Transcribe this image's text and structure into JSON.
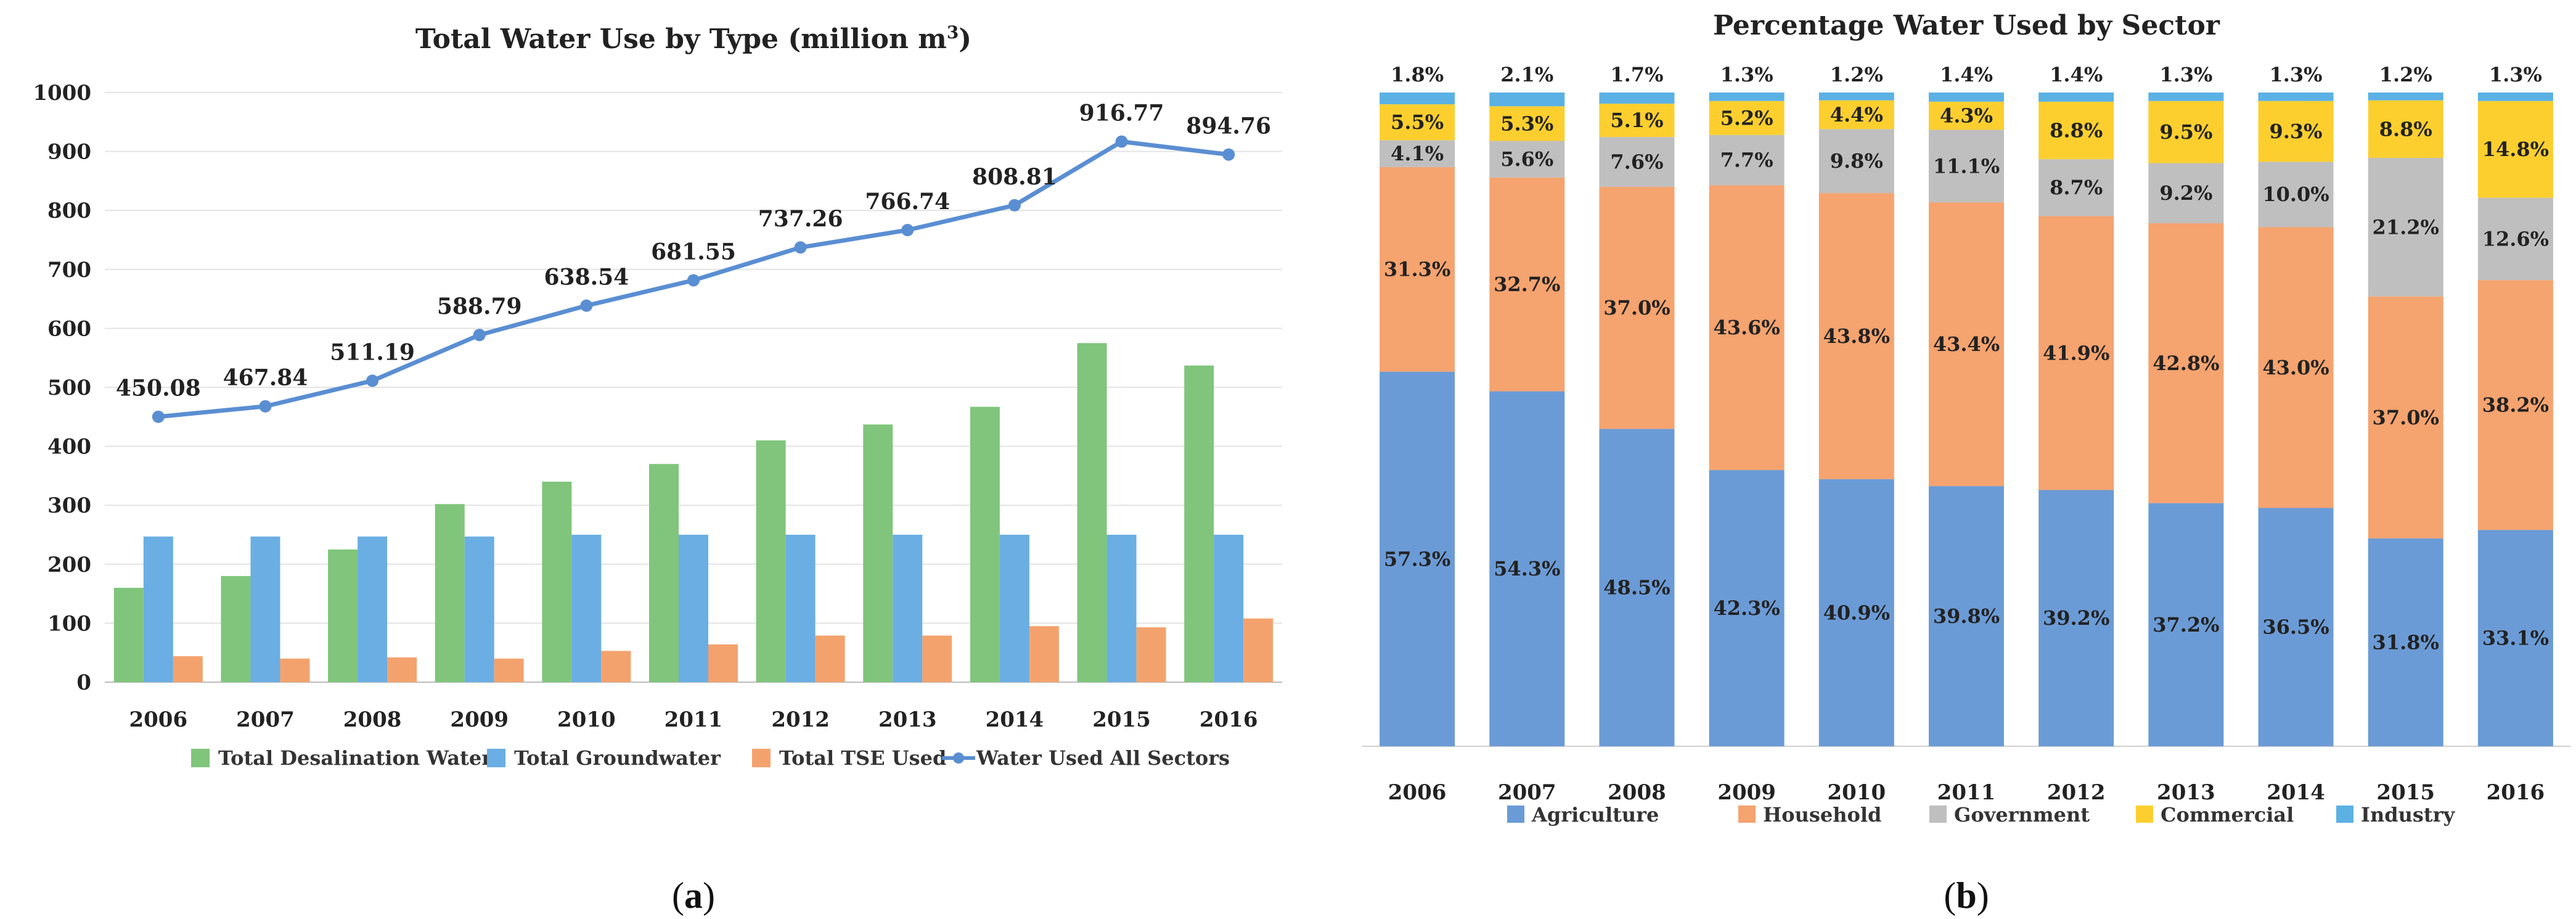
{
  "chart_data": [
    {
      "type": "bar",
      "panel_caption": "a",
      "title": "Total Water Use by Type (million  m",
      "title_superscript": "3",
      "title_suffix": ")",
      "categories": [
        "2006",
        "2007",
        "2008",
        "2009",
        "2010",
        "2011",
        "2012",
        "2013",
        "2014",
        "2015",
        "2016"
      ],
      "ylim": [
        0,
        1000
      ],
      "yticks": [
        0,
        100,
        200,
        300,
        400,
        500,
        600,
        700,
        800,
        900,
        1000
      ],
      "series": [
        {
          "name": "Total Desalination Water",
          "kind": "bar",
          "color": "#80c57b",
          "values": [
            160,
            180,
            225,
            302,
            340,
            370,
            410,
            437,
            467,
            575,
            537
          ]
        },
        {
          "name": "Total Groundwater",
          "kind": "bar",
          "color": "#6aaee3",
          "values": [
            247,
            247,
            247,
            247,
            250,
            250,
            250,
            250,
            250,
            250,
            250
          ]
        },
        {
          "name": "Total TSE Used",
          "kind": "bar",
          "color": "#f4a26d",
          "values": [
            44,
            40,
            42,
            40,
            53,
            64,
            79,
            79,
            95,
            93,
            108
          ]
        },
        {
          "name": "Water Used All Sectors",
          "kind": "line",
          "color": "#5a8ed2",
          "values": [
            450.08,
            467.84,
            511.19,
            588.79,
            638.54,
            681.55,
            737.26,
            766.74,
            808.81,
            916.77,
            894.76
          ],
          "labels": [
            "450.08",
            "467.84",
            "511.19",
            "588.79",
            "638.54",
            "681.55",
            "737.26",
            "766.74",
            "808.81",
            "916.77",
            "894.76"
          ]
        }
      ],
      "legend_position": "bottom"
    },
    {
      "type": "bar",
      "stacked": true,
      "panel_caption": "b",
      "title": "Percentage Water Used by Sector",
      "categories": [
        "2006",
        "2007",
        "2008",
        "2009",
        "2010",
        "2011",
        "2012",
        "2013",
        "2014",
        "2015",
        "2016"
      ],
      "ylim": [
        0,
        100
      ],
      "series": [
        {
          "name": "Agriculture",
          "color": "#6b9bd6",
          "values": [
            57.3,
            54.3,
            48.5,
            42.3,
            40.9,
            39.8,
            39.2,
            37.2,
            36.5,
            31.8,
            33.1
          ],
          "labels": [
            "57.3%",
            "54.3%",
            "48.5%",
            "42.3%",
            "40.9%",
            "39.8%",
            "39.2%",
            "37.2%",
            "36.5%",
            "31.8%",
            "33.1%"
          ]
        },
        {
          "name": "Household",
          "color": "#f5a36f",
          "values": [
            31.3,
            32.7,
            37.0,
            43.6,
            43.8,
            43.4,
            41.9,
            42.8,
            43.0,
            37.0,
            38.2
          ],
          "labels": [
            "31.3%",
            "32.7%",
            "37.0%",
            "43.6%",
            "43.8%",
            "43.4%",
            "41.9%",
            "42.8%",
            "43.0%",
            "37.0%",
            "38.2%"
          ]
        },
        {
          "name": "Government",
          "color": "#bfbfbf",
          "values": [
            4.1,
            5.6,
            7.6,
            7.7,
            9.8,
            11.1,
            8.7,
            9.2,
            10.0,
            21.2,
            12.6
          ],
          "labels": [
            "4.1%",
            "5.6%",
            "7.6%",
            "7.7%",
            "9.8%",
            "11.1%",
            "8.7%",
            "9.2%",
            "10.0%",
            "21.2%",
            "12.6%"
          ]
        },
        {
          "name": "Commercial",
          "color": "#fccf2f",
          "values": [
            5.5,
            5.3,
            5.1,
            5.2,
            4.4,
            4.3,
            8.8,
            9.5,
            9.3,
            8.8,
            14.8
          ],
          "labels": [
            "5.5%",
            "5.3%",
            "5.1%",
            "5.2%",
            "4.4%",
            "4.3%",
            "8.8%",
            "9.5%",
            "9.3%",
            "8.8%",
            "14.8%"
          ]
        },
        {
          "name": "Industry",
          "color": "#5bb1e4",
          "values": [
            1.8,
            2.1,
            1.7,
            1.3,
            1.2,
            1.4,
            1.4,
            1.3,
            1.3,
            1.2,
            1.3
          ],
          "labels": [
            "1.8%",
            "2.1%",
            "1.7%",
            "1.3%",
            "1.2%",
            "1.4%",
            "1.4%",
            "1.3%",
            "1.3%",
            "1.2%",
            "1.3%"
          ]
        }
      ],
      "legend_position": "bottom"
    }
  ]
}
